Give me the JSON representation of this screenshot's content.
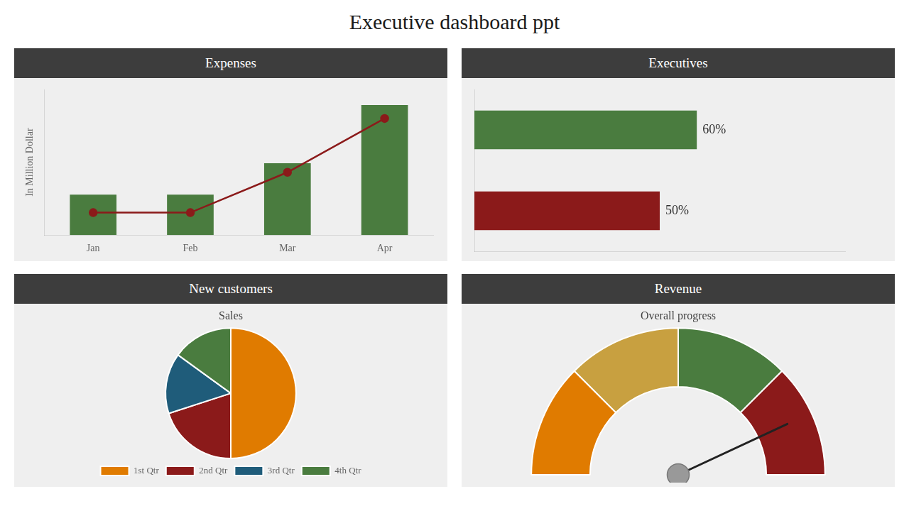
{
  "title": "Executive dashboard ppt",
  "chart_data": [
    {
      "type": "bar",
      "title": "Expenses",
      "categories": [
        "Jan",
        "Feb",
        "Mar",
        "Apr"
      ],
      "series": [
        {
          "type": "bar",
          "color": "#4a7c3f",
          "values": [
            1.8,
            1.8,
            3.2,
            5.8
          ]
        },
        {
          "type": "line",
          "color": "#8b1a1a",
          "marker": "circle",
          "values": [
            1.0,
            1.0,
            2.8,
            5.2
          ]
        }
      ],
      "ylabel": "In Million Dollar",
      "ylim": [
        0,
        6.496
      ],
      "yticks": [],
      "grid": false,
      "tick_labels": "x"
    },
    {
      "type": "bar",
      "title": "Executives",
      "orientation": "horizontal",
      "categories": [
        null,
        null
      ],
      "values": [
        60,
        50
      ],
      "value_labels": [
        "60%",
        "50%"
      ],
      "colors": [
        "#4a7c3f",
        "#8b1a1a"
      ],
      "xlim": [
        0,
        100
      ],
      "xticks": [],
      "grid": false,
      "tick_labels": false,
      "data_labels": true
    },
    {
      "type": "pie",
      "title": "New customers",
      "subtitle": "Sales",
      "categories": [
        "1st Qtr",
        "2nd Qtr",
        "3rd Qtr",
        "4th Qtr"
      ],
      "values": [
        0.5,
        0.2,
        0.15,
        0.15
      ],
      "colors": [
        "#e07b00",
        "#8b1a1a",
        "#1f5c7a",
        "#4a7c3f"
      ],
      "legend": "bottom"
    },
    {
      "type": "gauge",
      "title": "Revenue",
      "subtitle": "Overall progress",
      "values": [
        45,
        45,
        45,
        45
      ],
      "colors": [
        "#e07b00",
        "#c8a040",
        "#4a7c3f",
        "#8b1a1a"
      ],
      "needle_deg": 25
    }
  ]
}
